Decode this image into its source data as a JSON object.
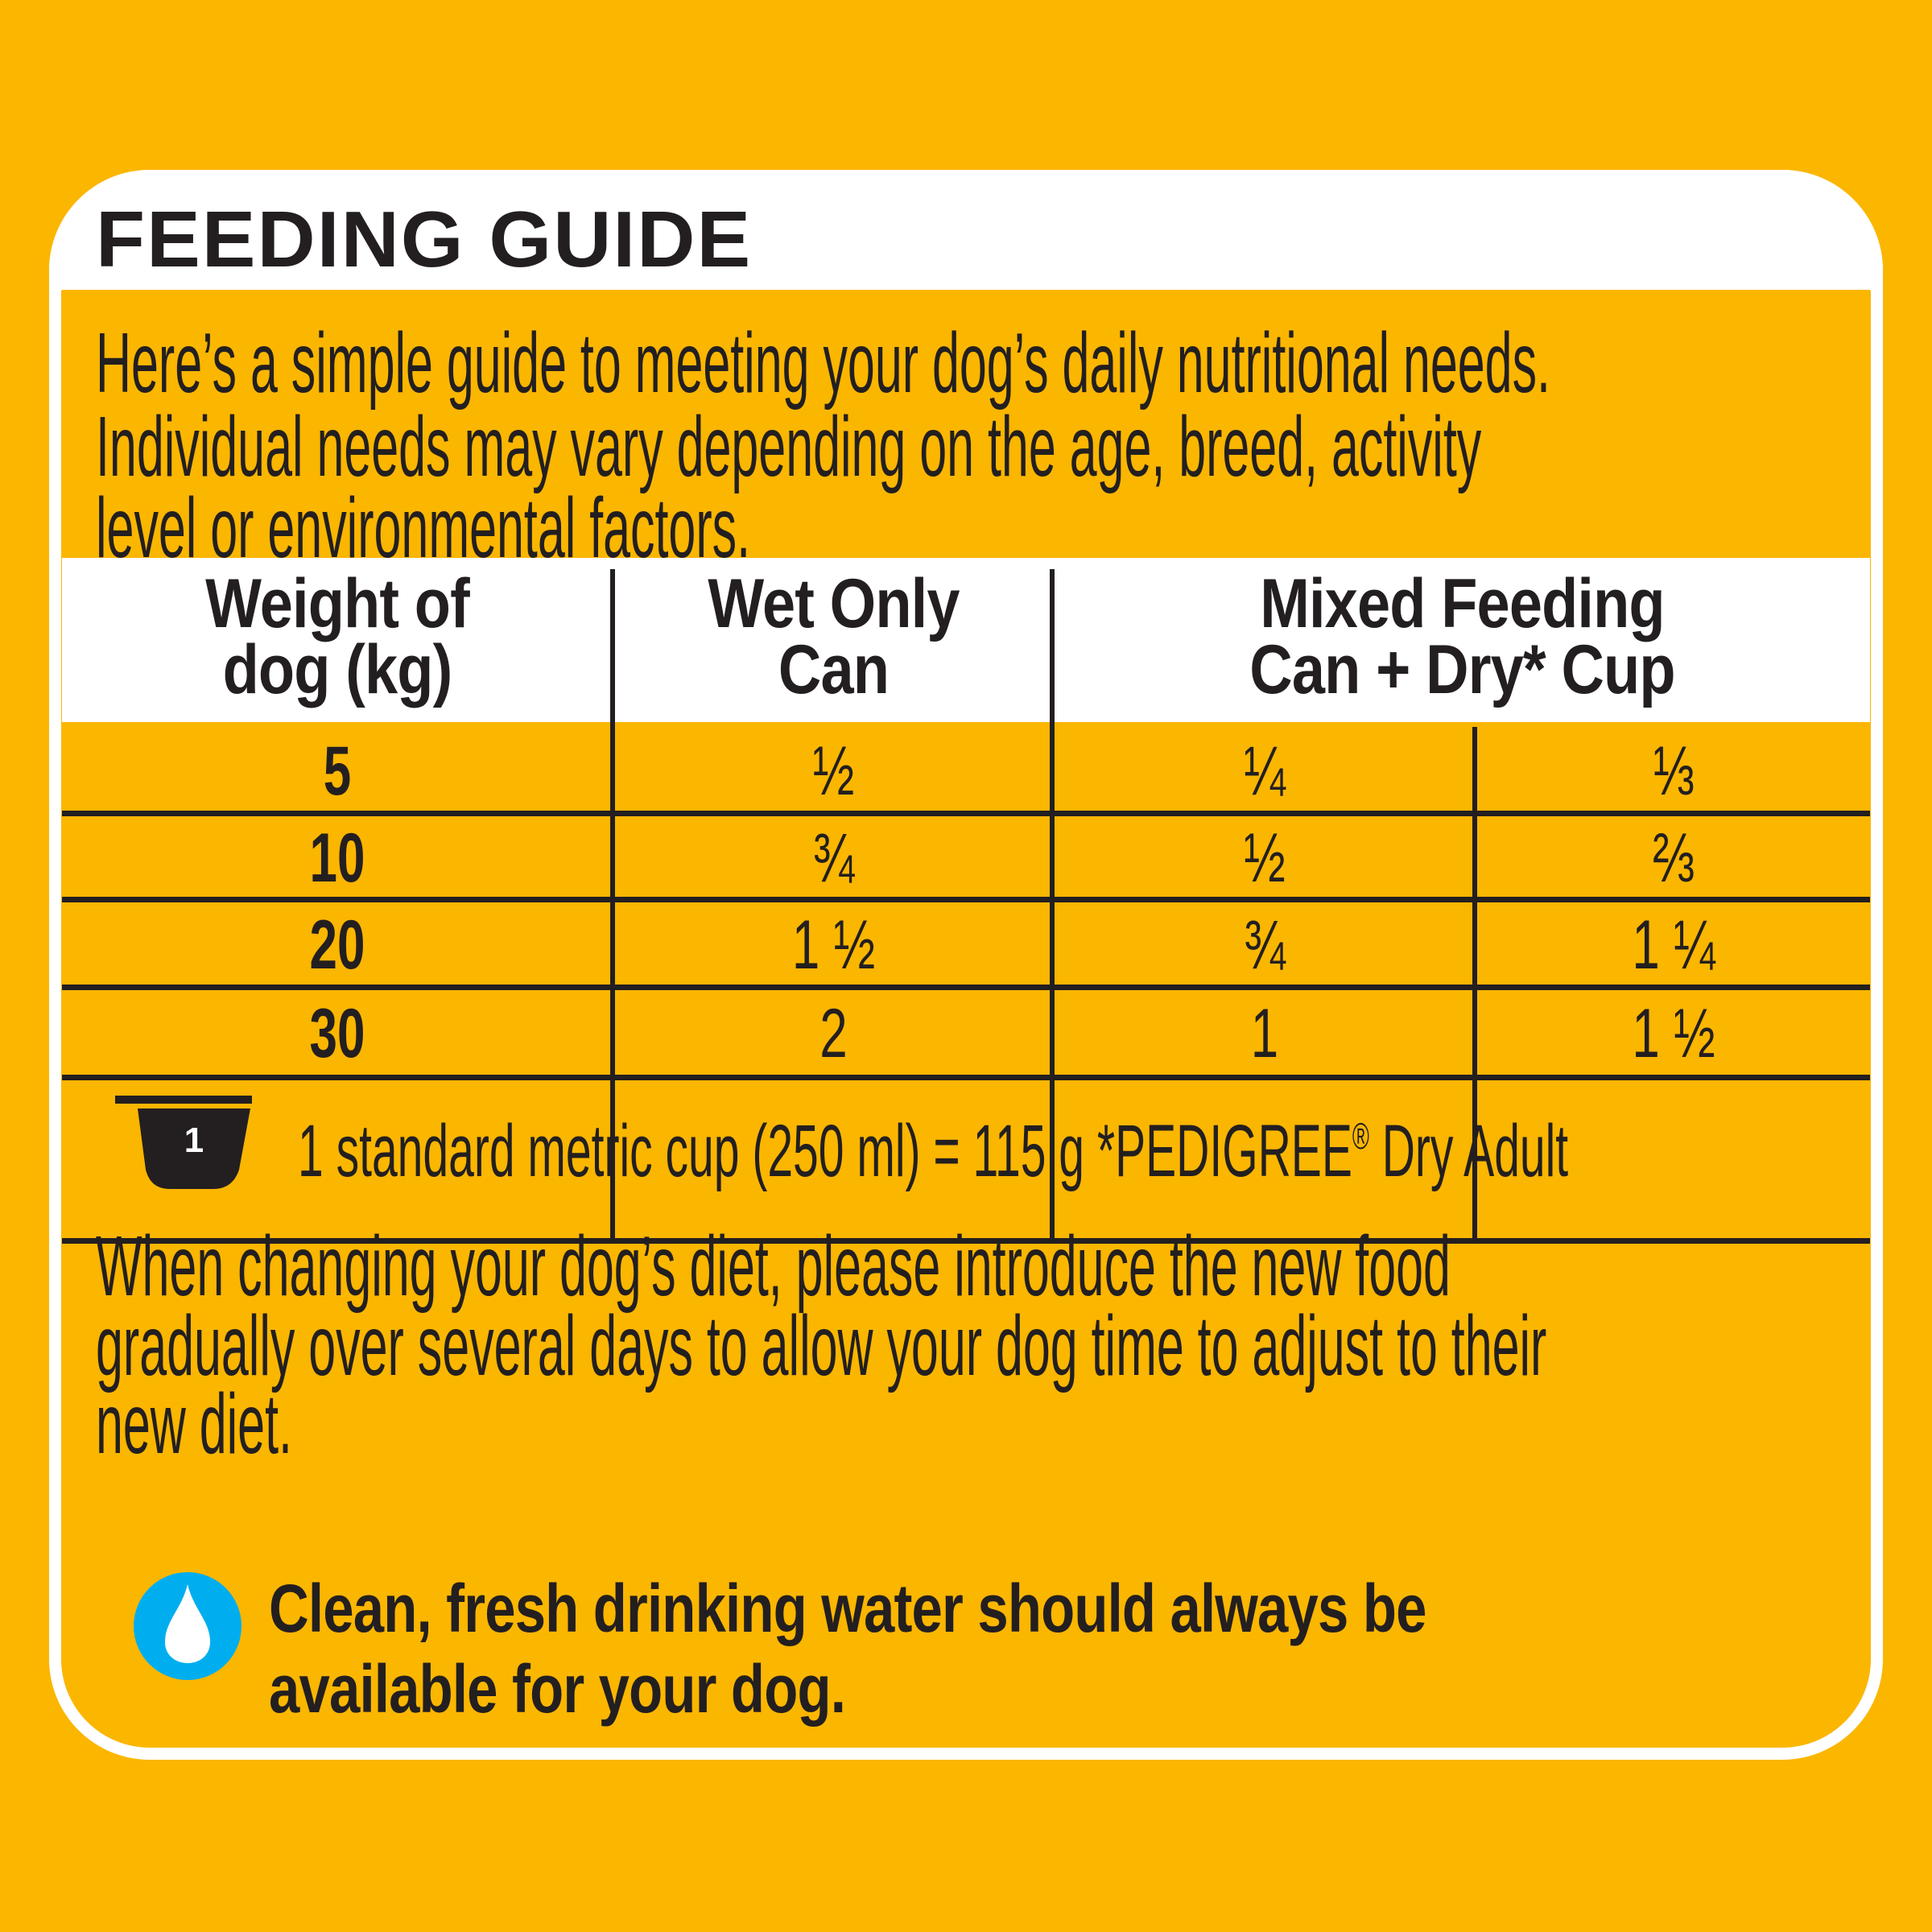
{
  "title": "FEEDING GUIDE",
  "intro": {
    "lines": [
      "Here’s a simple guide to meeting your dog’s daily nutritional needs.",
      "Individual needs may vary depending on the age, breed, activity",
      "level or environmental factors."
    ]
  },
  "table": {
    "headers": {
      "weight": [
        "Weight of",
        "dog (kg)"
      ],
      "wet": [
        "Wet Only",
        "Can"
      ],
      "mixed": [
        "Mixed Feeding",
        "Can + Dry* Cup"
      ]
    },
    "rows": [
      {
        "weight": "5",
        "wet_can": "½",
        "mixed_can": "¼",
        "mixed_cup": "⅓"
      },
      {
        "weight": "10",
        "wet_can": "¾",
        "mixed_can": "½",
        "mixed_cup": "⅔"
      },
      {
        "weight": "20",
        "wet_can": "1 ½",
        "mixed_can": "¾",
        "mixed_cup": "1 ¼"
      },
      {
        "weight": "30",
        "wet_can": "2",
        "mixed_can": "1",
        "mixed_cup": "1 ½"
      }
    ]
  },
  "cup_note": {
    "icon": "measuring-cup-icon",
    "icon_label": "1",
    "text": "1 standard metric cup (250 ml) = 115 g *PEDIGREE",
    "registered": "®",
    "text_end": " Dry Adult"
  },
  "changing": {
    "lines": [
      "When changing your dog’s diet, please introduce the new food",
      "gradually over several days to allow your dog time to adjust to their",
      "new diet."
    ]
  },
  "water": {
    "icon": "water-drop-icon",
    "lines": [
      "Clean, fresh drinking water should always be",
      "available for your dog."
    ]
  },
  "colors": {
    "background": "#FBB600",
    "text": "#231F20",
    "water_icon": "#00AEEF",
    "card_border": "#FFFFFF"
  }
}
